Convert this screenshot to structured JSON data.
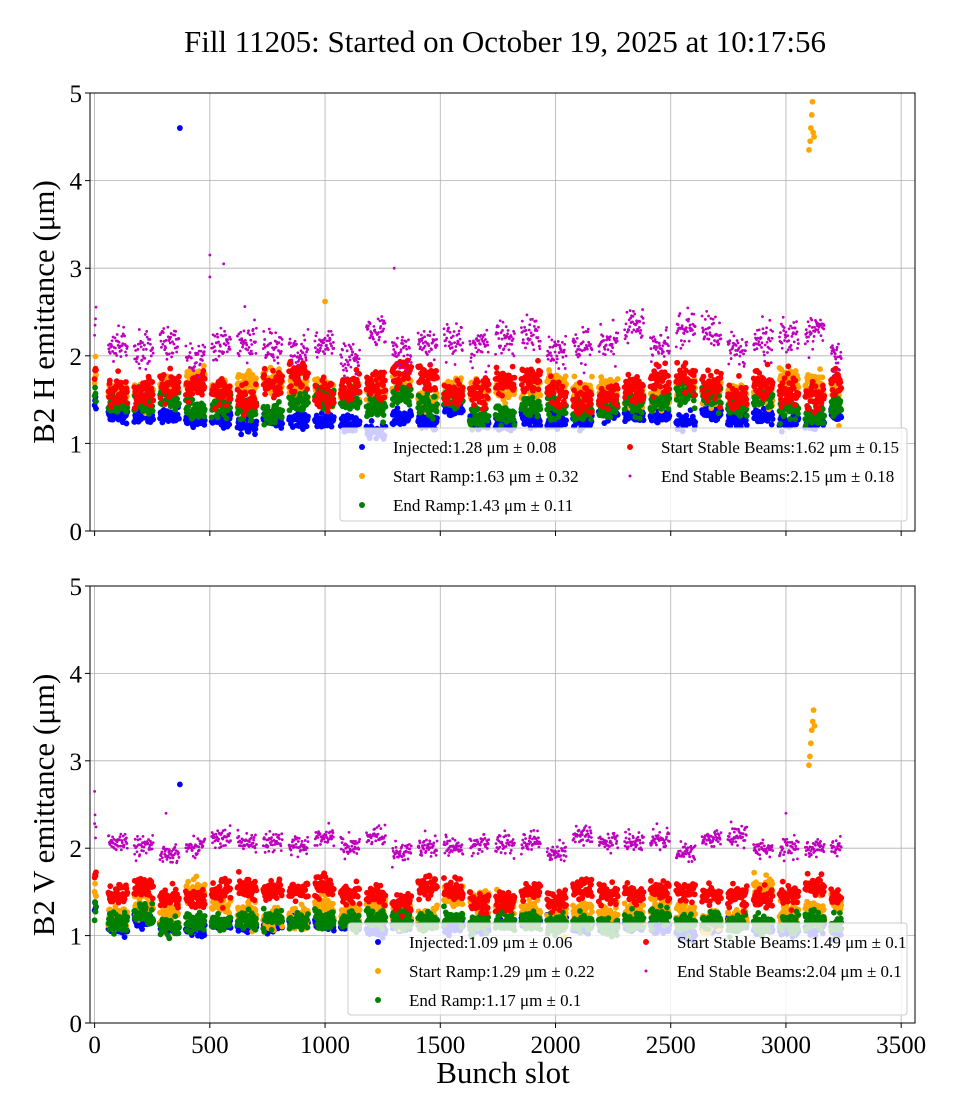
{
  "chart_data": [
    {
      "type": "scatter",
      "title": "Fill 11205: Started on October 19, 2025 at 10:17:56",
      "xlabel": "",
      "ylabel": "B2 H emittance (μm)",
      "xlim": [
        -20,
        3560
      ],
      "ylim": [
        0,
        5
      ],
      "xticks": [
        0,
        500,
        1000,
        1500,
        2000,
        2500,
        3000,
        3500
      ],
      "xtick_labels_visible": false,
      "yticks": [
        0,
        1,
        2,
        3,
        4,
        5
      ],
      "grid": true,
      "legend_position": "lower-right",
      "filled_slot_range": [
        0,
        3240
      ],
      "series": [
        {
          "name": "Injected",
          "legend": "Injected:1.28 μm ± 0.08",
          "mean": 1.28,
          "std": 0.08,
          "color": "#0000ff",
          "outliers": [
            [
              370,
              4.6
            ]
          ]
        },
        {
          "name": "Start Ramp",
          "legend": "Start Ramp:1.63 μm ± 0.32",
          "mean": 1.63,
          "std": 0.32,
          "color": "#ffa500",
          "outliers": [
            [
              3100,
              4.35
            ],
            [
              3105,
              4.45
            ],
            [
              3108,
              4.6
            ],
            [
              3112,
              4.75
            ],
            [
              3115,
              4.9
            ],
            [
              3118,
              4.55
            ],
            [
              3122,
              4.5
            ],
            [
              1000,
              2.62
            ],
            [
              3230,
              1.2
            ]
          ]
        },
        {
          "name": "End Ramp",
          "legend": "End Ramp:1.43 μm ± 0.11",
          "mean": 1.43,
          "std": 0.11,
          "color": "#008000",
          "outliers": []
        },
        {
          "name": "Start Stable Beams",
          "legend": "Start Stable Beams:1.62 μm ± 0.15",
          "mean": 1.62,
          "std": 0.15,
          "color": "#ff0000",
          "outliers": []
        },
        {
          "name": "End Stable Beams",
          "legend": "End Stable Beams:2.15 μm ± 0.18",
          "mean": 2.15,
          "std": 0.18,
          "color": "#bf00bf",
          "outliers": [
            [
              500,
              3.15
            ],
            [
              560,
              3.05
            ],
            [
              1300,
              3.0
            ],
            [
              500,
              2.9
            ]
          ]
        }
      ]
    },
    {
      "type": "scatter",
      "xlabel": "Bunch slot",
      "ylabel": "B2 V emittance (μm)",
      "xlim": [
        -20,
        3560
      ],
      "ylim": [
        0,
        5
      ],
      "xticks": [
        0,
        500,
        1000,
        1500,
        2000,
        2500,
        3000,
        3500
      ],
      "yticks": [
        0,
        1,
        2,
        3,
        4,
        5
      ],
      "grid": true,
      "legend_position": "lower-right",
      "filled_slot_range": [
        0,
        3240
      ],
      "series": [
        {
          "name": "Injected",
          "legend": "Injected:1.09 μm ± 0.06",
          "mean": 1.09,
          "std": 0.06,
          "color": "#0000ff",
          "outliers": [
            [
              370,
              2.73
            ]
          ]
        },
        {
          "name": "Start Ramp",
          "legend": "Start Ramp:1.29 μm ± 0.22",
          "mean": 1.29,
          "std": 0.22,
          "color": "#ffa500",
          "outliers": [
            [
              3100,
              2.95
            ],
            [
              3104,
              3.05
            ],
            [
              3108,
              3.2
            ],
            [
              3112,
              3.35
            ],
            [
              3116,
              3.45
            ],
            [
              3120,
              3.58
            ],
            [
              3124,
              3.4
            ]
          ]
        },
        {
          "name": "End Ramp",
          "legend": "End Ramp:1.17 μm ± 0.1",
          "mean": 1.17,
          "std": 0.1,
          "color": "#008000",
          "outliers": []
        },
        {
          "name": "Start Stable Beams",
          "legend": "Start Stable Beams:1.49 μm ± 0.1",
          "mean": 1.49,
          "std": 0.1,
          "color": "#ff0000",
          "outliers": []
        },
        {
          "name": "End Stable Beams",
          "legend": "End Stable Beams:2.04 μm ± 0.1",
          "mean": 2.04,
          "std": 0.1,
          "color": "#bf00bf",
          "outliers": [
            [
              0,
              2.65
            ],
            [
              3000,
              2.4
            ],
            [
              310,
              2.4
            ]
          ]
        }
      ]
    }
  ]
}
